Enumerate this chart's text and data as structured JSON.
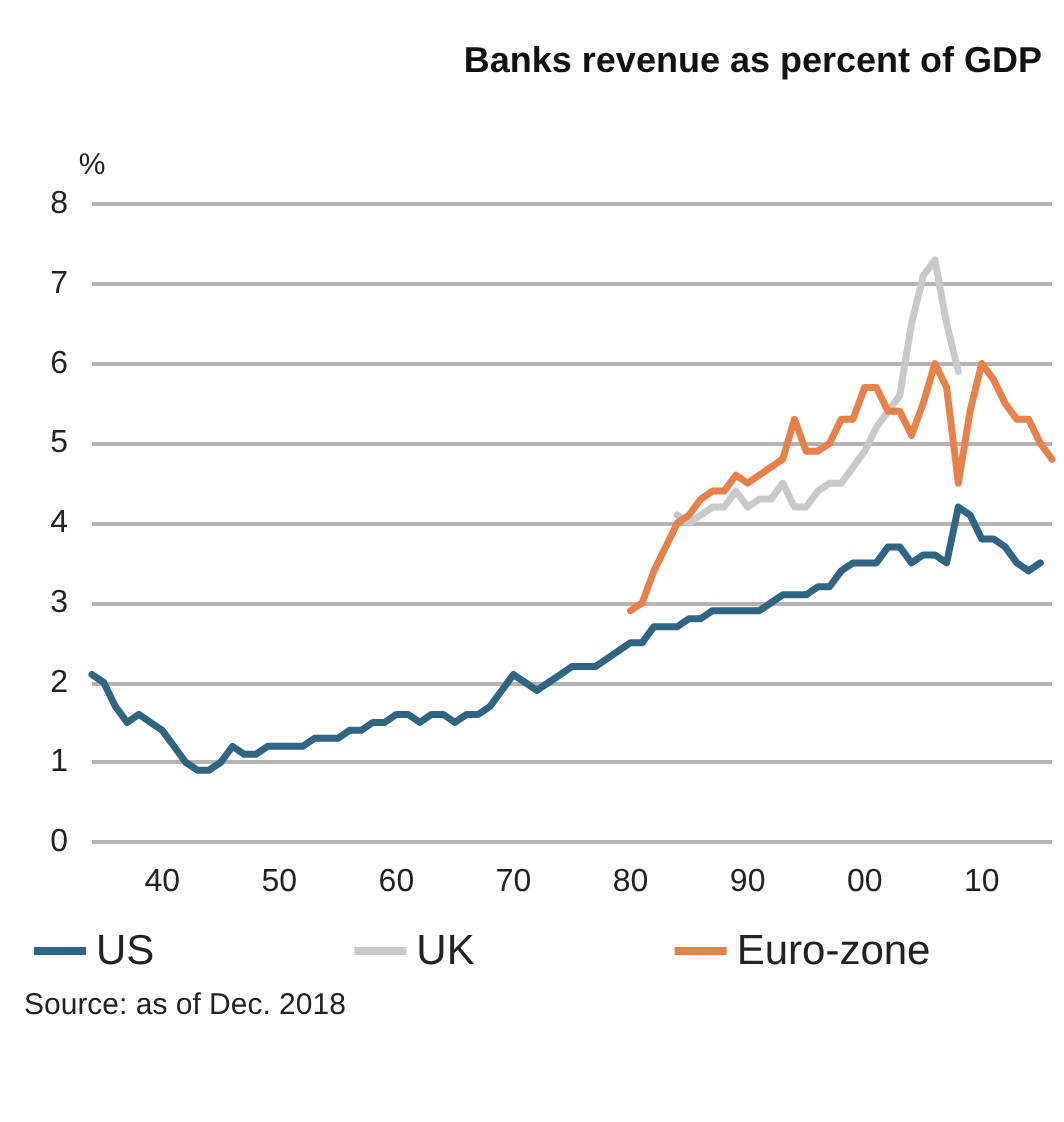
{
  "chart_data": {
    "type": "line",
    "title": "Banks revenue as percent of GDP",
    "ylabel": "%",
    "annotations": [
      "Source: as of Dec. 2018"
    ],
    "xlim": [
      1934,
      2016
    ],
    "xticks": [
      {
        "value": 1940,
        "label": "40"
      },
      {
        "value": 1950,
        "label": "50"
      },
      {
        "value": 1960,
        "label": "60"
      },
      {
        "value": 1970,
        "label": "70"
      },
      {
        "value": 1980,
        "label": "80"
      },
      {
        "value": 1990,
        "label": "90"
      },
      {
        "value": 2000,
        "label": "00"
      },
      {
        "value": 2010,
        "label": "10"
      }
    ],
    "ylim": [
      0,
      8
    ],
    "yticks": [
      0,
      1,
      2,
      3,
      4,
      5,
      6,
      7,
      8
    ],
    "grid": "y",
    "legend": "bottom",
    "marker": "none",
    "line_style": "solid",
    "series": [
      {
        "name": "US",
        "color": "#2f6582",
        "x": [
          1934,
          1935,
          1936,
          1937,
          1938,
          1939,
          1940,
          1941,
          1942,
          1943,
          1944,
          1945,
          1946,
          1947,
          1948,
          1949,
          1950,
          1951,
          1952,
          1953,
          1954,
          1955,
          1956,
          1957,
          1958,
          1959,
          1960,
          1961,
          1962,
          1963,
          1964,
          1965,
          1966,
          1967,
          1968,
          1969,
          1970,
          1971,
          1972,
          1973,
          1974,
          1975,
          1976,
          1977,
          1978,
          1979,
          1980,
          1981,
          1982,
          1983,
          1984,
          1985,
          1986,
          1987,
          1988,
          1989,
          1990,
          1991,
          1992,
          1993,
          1994,
          1995,
          1996,
          1997,
          1998,
          1999,
          2000,
          2001,
          2002,
          2003,
          2004,
          2005,
          2006,
          2007,
          2008,
          2009,
          2010,
          2011,
          2012,
          2013,
          2014,
          2015
        ],
        "values": [
          2.1,
          2.0,
          1.7,
          1.5,
          1.6,
          1.5,
          1.4,
          1.2,
          1.0,
          0.9,
          0.9,
          1.0,
          1.2,
          1.1,
          1.1,
          1.2,
          1.2,
          1.2,
          1.2,
          1.3,
          1.3,
          1.3,
          1.4,
          1.4,
          1.5,
          1.5,
          1.6,
          1.6,
          1.5,
          1.6,
          1.6,
          1.5,
          1.6,
          1.6,
          1.7,
          1.9,
          2.1,
          2.0,
          1.9,
          2.0,
          2.1,
          2.2,
          2.2,
          2.2,
          2.3,
          2.4,
          2.5,
          2.5,
          2.7,
          2.7,
          2.7,
          2.8,
          2.8,
          2.9,
          2.9,
          2.9,
          2.9,
          2.9,
          3.0,
          3.1,
          3.1,
          3.1,
          3.2,
          3.2,
          3.4,
          3.5,
          3.5,
          3.5,
          3.7,
          3.7,
          3.5,
          3.6,
          3.6,
          3.5,
          4.2,
          4.1,
          3.8,
          3.8,
          3.7,
          3.5,
          3.4,
          3.5
        ]
      },
      {
        "name": "UK",
        "color": "#c8c9cb",
        "x": [
          1984,
          1985,
          1986,
          1987,
          1988,
          1989,
          1990,
          1991,
          1992,
          1993,
          1994,
          1995,
          1996,
          1997,
          1998,
          1999,
          2000,
          2001,
          2002,
          2003,
          2004,
          2005,
          2006,
          2007,
          2008
        ],
        "values": [
          4.1,
          4.0,
          4.1,
          4.2,
          4.2,
          4.4,
          4.2,
          4.3,
          4.3,
          4.5,
          4.2,
          4.2,
          4.4,
          4.5,
          4.5,
          4.7,
          4.9,
          5.2,
          5.4,
          5.6,
          6.5,
          7.1,
          7.3,
          6.5,
          5.9
        ]
      },
      {
        "name": "Euro-zone",
        "color": "#e8804a",
        "x": [
          1980,
          1981,
          1982,
          1983,
          1984,
          1985,
          1986,
          1987,
          1988,
          1989,
          1990,
          1991,
          1992,
          1993,
          1994,
          1995,
          1996,
          1997,
          1998,
          1999,
          2000,
          2001,
          2002,
          2003,
          2004,
          2005,
          2006,
          2007,
          2008,
          2009,
          2010,
          2011,
          2012,
          2013,
          2014,
          2015,
          2016
        ],
        "values": [
          2.9,
          3.0,
          3.4,
          3.7,
          4.0,
          4.1,
          4.3,
          4.4,
          4.4,
          4.6,
          4.5,
          4.6,
          4.7,
          4.8,
          5.3,
          4.9,
          4.9,
          5.0,
          5.3,
          5.3,
          5.7,
          5.7,
          5.4,
          5.4,
          5.1,
          5.5,
          6.0,
          5.7,
          4.5,
          5.4,
          6.0,
          5.8,
          5.5,
          5.3,
          5.3,
          5.0,
          4.8
        ]
      }
    ]
  }
}
